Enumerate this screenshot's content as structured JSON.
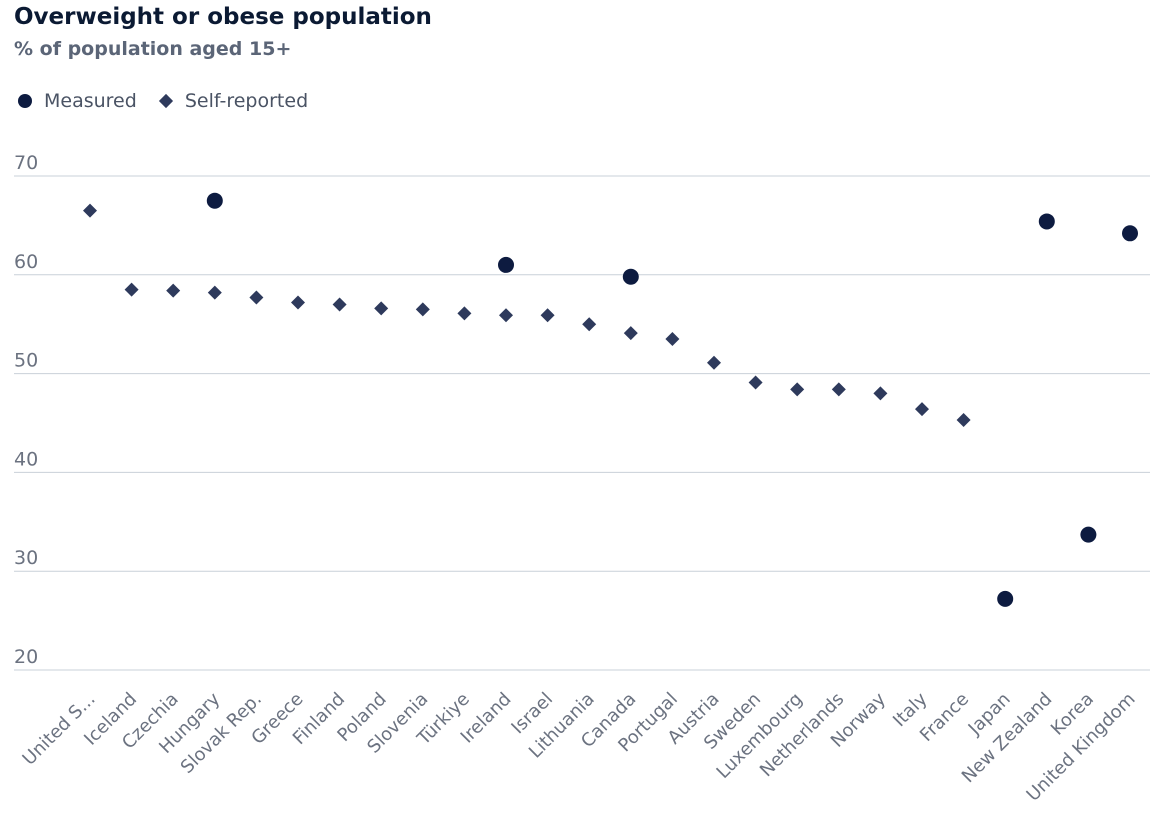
{
  "chart_data": {
    "type": "scatter",
    "title": "Overweight or obese population",
    "subtitle": "% of population aged 15+",
    "ylim": [
      20,
      70
    ],
    "yticks": [
      20,
      30,
      40,
      50,
      60,
      70
    ],
    "grid": true,
    "legend_placement": "top-left",
    "categories": [
      "United S...",
      "Iceland",
      "Czechia",
      "Hungary",
      "Slovak Rep.",
      "Greece",
      "Finland",
      "Poland",
      "Slovenia",
      "Türkiye",
      "Ireland",
      "Israel",
      "Lithuania",
      "Canada",
      "Portugal",
      "Austria",
      "Sweden",
      "Luxembourg",
      "Netherlands",
      "Norway",
      "Italy",
      "France",
      "Japan",
      "New Zealand",
      "Korea",
      "United Kingdom"
    ],
    "series": [
      {
        "name": "Measured",
        "marker": "circle",
        "color": "#0d1b40",
        "values": [
          null,
          null,
          null,
          67.5,
          null,
          null,
          null,
          null,
          null,
          null,
          61.0,
          null,
          null,
          59.8,
          null,
          null,
          null,
          null,
          null,
          null,
          null,
          null,
          27.2,
          65.4,
          33.7,
          64.2
        ]
      },
      {
        "name": "Self-reported",
        "marker": "diamond",
        "color": "#2e3a5c",
        "values": [
          66.5,
          58.5,
          58.4,
          58.2,
          57.7,
          57.2,
          57.0,
          56.6,
          56.5,
          56.1,
          55.9,
          55.9,
          55.0,
          54.1,
          53.5,
          51.1,
          49.1,
          48.4,
          48.4,
          48.0,
          46.4,
          45.3,
          null,
          null,
          null,
          null
        ]
      }
    ]
  }
}
